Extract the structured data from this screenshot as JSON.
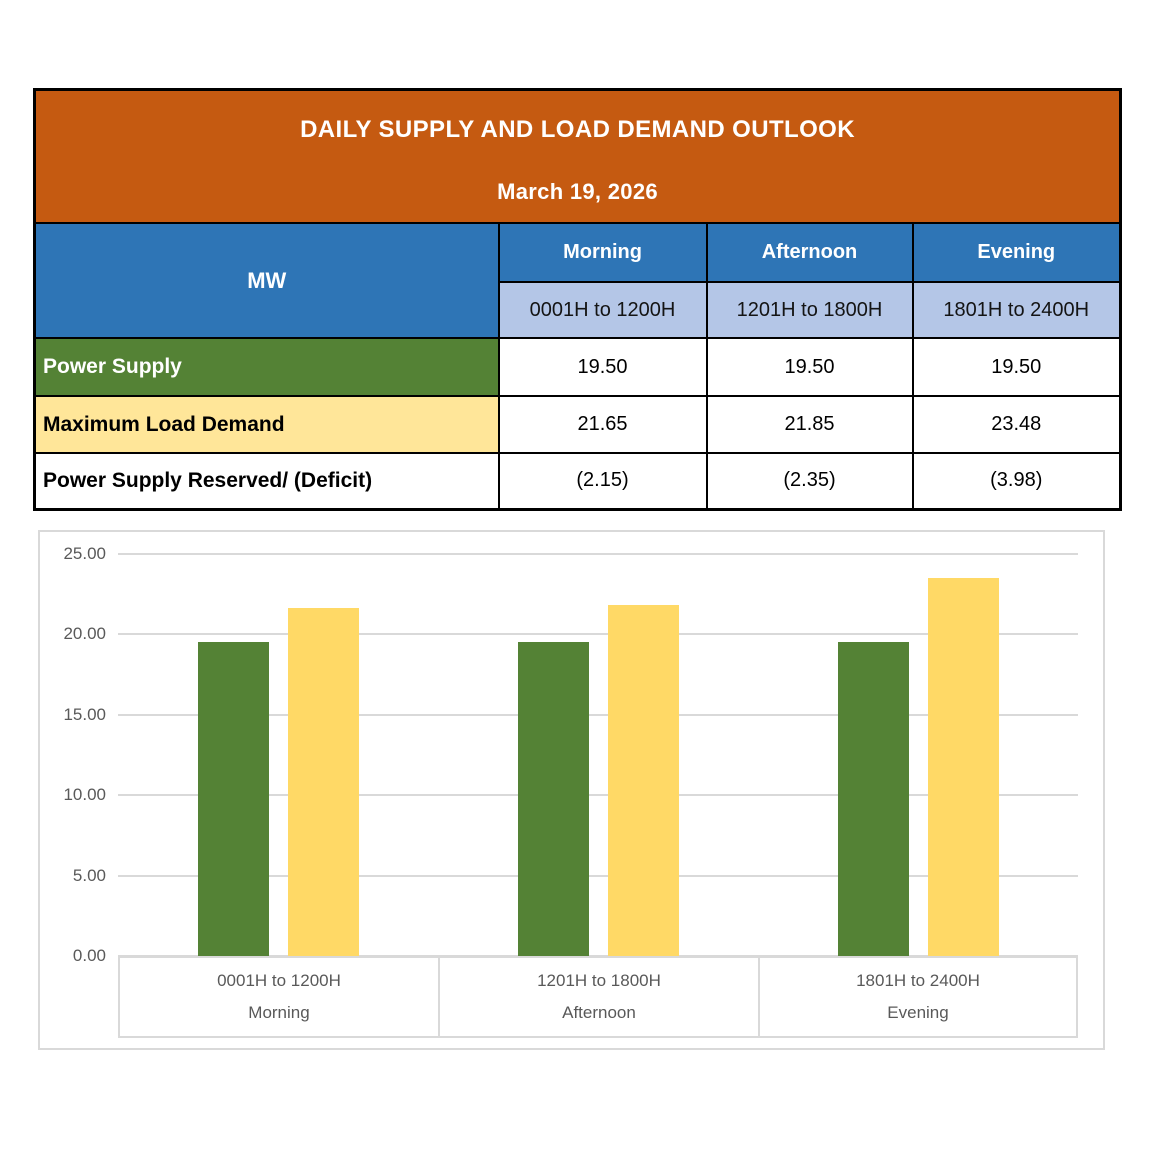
{
  "table": {
    "title": "DAILY SUPPLY AND LOAD DEMAND OUTLOOK",
    "date": "March 19, 2026",
    "unit_label": "MW",
    "period_headers": [
      "Morning",
      "Afternoon",
      "Evening"
    ],
    "time_headers": [
      "0001H to 1200H",
      "1201H to 1800H",
      "1801H to 2400H"
    ],
    "rows": [
      {
        "label": "Power Supply",
        "values": [
          "19.50",
          "19.50",
          "19.50"
        ]
      },
      {
        "label": "Maximum Load Demand",
        "values": [
          "21.65",
          "21.85",
          "23.48"
        ]
      },
      {
        "label": "Power Supply Reserved/ (Deficit)",
        "values": [
          "(2.15)",
          "(2.35)",
          "(3.98)"
        ]
      }
    ]
  },
  "colors": {
    "header_orange": "#C55A11",
    "header_blue": "#2E75B6",
    "subheader_light_blue": "#B4C6E7",
    "supply_green": "#548235",
    "demand_yellow": "#FFE699",
    "bar_green": "#548235",
    "bar_yellow": "#FFD966",
    "gridline_gray": "#D9D9D9",
    "axis_text_gray": "#595959",
    "table_border": "#000000"
  },
  "chart_data": {
    "type": "bar",
    "title": "",
    "xlabel": "",
    "ylabel": "",
    "categories": [
      {
        "time": "0001H to 1200H",
        "period": "Morning"
      },
      {
        "time": "1201H to 1800H",
        "period": "Afternoon"
      },
      {
        "time": "1801H to 2400H",
        "period": "Evening"
      }
    ],
    "series": [
      {
        "name": "Power Supply",
        "color": "#548235",
        "values": [
          19.5,
          19.5,
          19.5
        ]
      },
      {
        "name": "Maximum Load Demand",
        "color": "#FFD966",
        "values": [
          21.65,
          21.85,
          23.48
        ]
      }
    ],
    "ylim": [
      0,
      25
    ],
    "yticks": [
      0,
      5,
      10,
      15,
      20,
      25
    ],
    "ytick_labels": [
      "0.00",
      "5.00",
      "10.00",
      "15.00",
      "20.00",
      "25.00"
    ],
    "grid": true,
    "legend": "none"
  }
}
